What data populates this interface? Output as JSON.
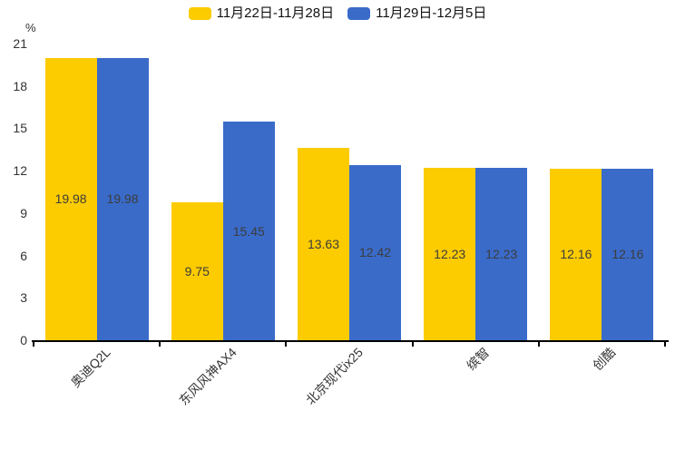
{
  "chart_data": {
    "type": "bar",
    "title": "",
    "ylabel": "%",
    "xlabel": "",
    "ylim": [
      0,
      21
    ],
    "yticks": [
      0,
      3,
      6,
      9,
      12,
      15,
      18,
      21
    ],
    "grid": false,
    "legend_position": "top-center",
    "value_label_position": "inside-center",
    "categories": [
      "奥迪Q2L",
      "东风风神AX4",
      "北京现代ix25",
      "缤智",
      "创酷"
    ],
    "series": [
      {
        "name": "11月22日-11月28日",
        "color": "#FCCB00",
        "values": [
          19.98,
          9.75,
          13.63,
          12.23,
          12.16
        ]
      },
      {
        "name": "11月29日-12月5日",
        "color": "#3A6BC9",
        "values": [
          19.98,
          15.45,
          12.42,
          12.23,
          12.16
        ]
      }
    ],
    "colors": {
      "value_label": "#3C3C3C",
      "axis": "#000000",
      "tick_label": "#333333"
    }
  }
}
